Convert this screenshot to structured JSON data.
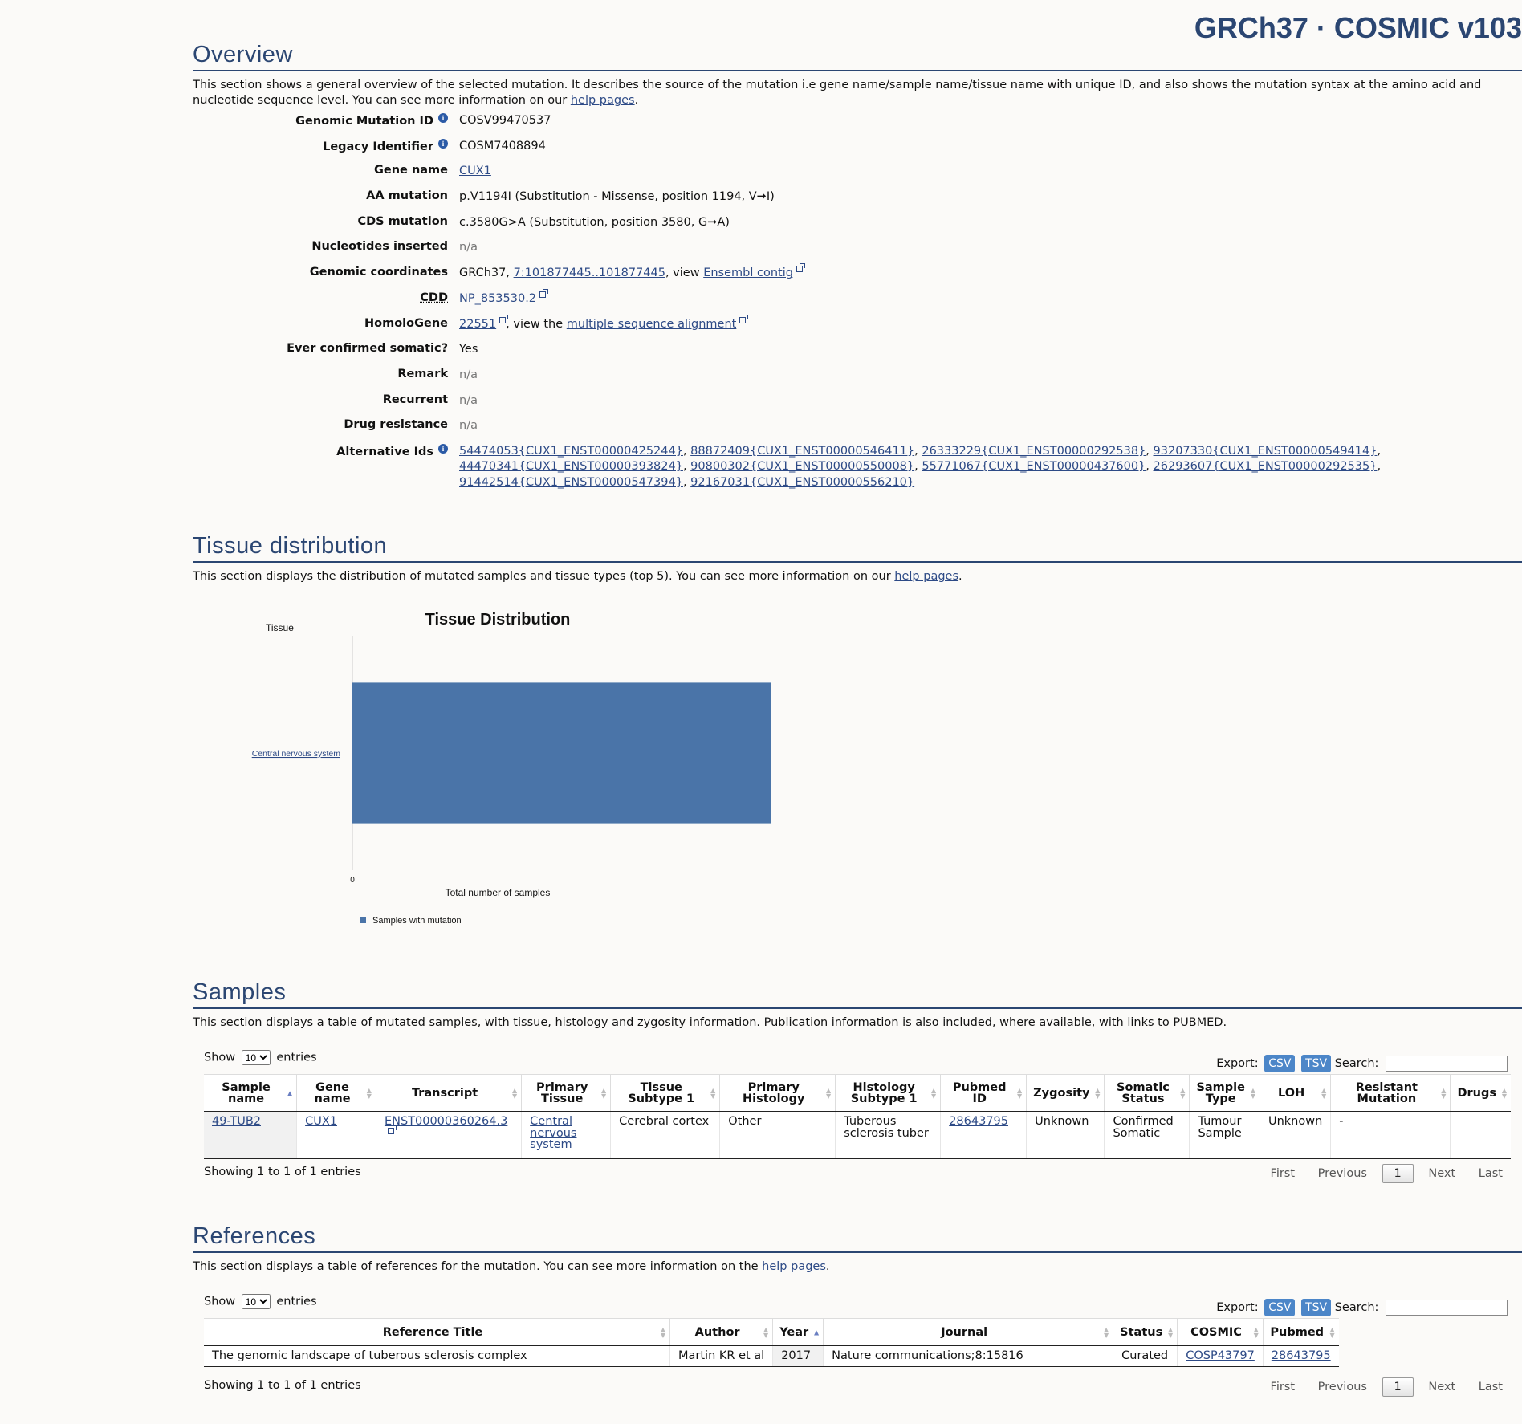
{
  "header": {
    "release": "GRCh37 · COSMIC v103"
  },
  "overview": {
    "title": "Overview",
    "intro_prefix": "This section shows a general overview of the selected mutation. It describes the source of the mutation i.e gene name/sample name/tissue name with unique ID, and also shows the mutation syntax at the amino acid and nucleotide sequence level. You can see more information on our ",
    "intro_link": "help pages",
    "intro_suffix": ".",
    "fields": {
      "genomic_mutation_id": {
        "label": "Genomic Mutation ID",
        "value": "COSV99470537"
      },
      "legacy_identifier": {
        "label": "Legacy Identifier",
        "value": "COSM7408894"
      },
      "gene_name": {
        "label": "Gene name",
        "value": "CUX1"
      },
      "aa_mutation": {
        "label": "AA mutation",
        "value": "p.V1194I (Substitution - Missense, position 1194, V➞I)"
      },
      "cds_mutation": {
        "label": "CDS mutation",
        "value": "c.3580G>A (Substitution, position 3580, G➞A)"
      },
      "nucleotides_inserted": {
        "label": "Nucleotides inserted",
        "value": "n/a"
      },
      "genomic_coordinates": {
        "label": "Genomic coordinates",
        "prefix": "GRCh37, ",
        "link": "7:101877445..101877445",
        "mid": ", view ",
        "link2": "Ensembl contig"
      },
      "cdd": {
        "label": "CDD",
        "link": "NP_853530.2"
      },
      "homologene": {
        "label": "HomoloGene",
        "link": "22551",
        "mid": ", view the ",
        "link2": "multiple sequence alignment"
      },
      "ever_confirmed": {
        "label": "Ever confirmed somatic?",
        "value": "Yes"
      },
      "remark": {
        "label": "Remark",
        "value": "n/a"
      },
      "recurrent": {
        "label": "Recurrent",
        "value": "n/a"
      },
      "drug_resistance": {
        "label": "Drug resistance",
        "value": "n/a"
      },
      "alternative_ids": {
        "label": "Alternative Ids",
        "ids": [
          "54474053{CUX1_ENST00000425244}",
          "88872409{CUX1_ENST00000546411}",
          "26333229{CUX1_ENST00000292538}",
          "93207330{CUX1_ENST00000549414}",
          "44470341{CUX1_ENST00000393824}",
          "90800302{CUX1_ENST00000550008}",
          "55771067{CUX1_ENST00000437600}",
          "26293607{CUX1_ENST00000292535}",
          "91442514{CUX1_ENST00000547394}",
          "92167031{CUX1_ENST00000556210}"
        ]
      }
    }
  },
  "tissue": {
    "title": "Tissue distribution",
    "intro_prefix": "This section displays the distribution of mutated samples and tissue types (top 5). You can see more information on our ",
    "intro_link": "help pages",
    "intro_suffix": "."
  },
  "chart_data": {
    "type": "bar",
    "orientation": "horizontal",
    "title": "Tissue Distribution",
    "categories": [
      "Central nervous system"
    ],
    "series": [
      {
        "name": "Samples with mutation",
        "values": [
          1
        ],
        "color": "#4a74a8"
      }
    ],
    "xlabel": "Total number of samples",
    "ylabel": "Tissue",
    "xlim": [
      0,
      1
    ],
    "xticks": [
      "0",
      "1"
    ],
    "legend": "bottom-left",
    "grid": false
  },
  "samples": {
    "title": "Samples",
    "intro": "This section displays a table of mutated samples, with tissue, histology and zygosity information. Publication information is also included, where available, with links to PUBMED.",
    "show_label": "Show",
    "page_size": "10",
    "entries_label": "entries",
    "export_label": "Export:",
    "csv": "CSV",
    "tsv": "TSV",
    "search_label": "Search:",
    "columns": [
      "Sample name",
      "Gene name",
      "Transcript",
      "Primary Tissue",
      "Tissue Subtype 1",
      "Primary Histology",
      "Histology Subtype 1",
      "Pubmed ID",
      "Zygosity",
      "Somatic Status",
      "Sample Type",
      "LOH",
      "Resistant Mutation",
      "Drugs"
    ],
    "row": {
      "sample_name": "49-TUB2",
      "gene_name": "CUX1",
      "transcript": "ENST00000360264.3",
      "primary_tissue": "Central nervous system",
      "tissue_subtype": "Cerebral cortex",
      "primary_histology": "Other",
      "histology_subtype": "Tuberous sclerosis tuber",
      "pubmed_id": "28643795",
      "zygosity": "Unknown",
      "somatic_status": "Confirmed Somatic",
      "sample_type": "Tumour Sample",
      "loh": "Unknown",
      "resistant_mutation": "-",
      "drugs": ""
    },
    "info": "Showing 1 to 1 of 1 entries",
    "pager": {
      "first": "First",
      "previous": "Previous",
      "current": "1",
      "next": "Next",
      "last": "Last"
    }
  },
  "references": {
    "title": "References",
    "intro_prefix": "This section displays a table of references for the mutation. You can see more information on the ",
    "intro_link": "help pages",
    "intro_suffix": ".",
    "show_label": "Show",
    "page_size": "10",
    "entries_label": "entries",
    "export_label": "Export:",
    "csv": "CSV",
    "tsv": "TSV",
    "search_label": "Search:",
    "columns": [
      "Reference Title",
      "Author",
      "Year",
      "Journal",
      "Status",
      "COSMIC",
      "Pubmed"
    ],
    "row": {
      "title": "The genomic landscape of tuberous sclerosis complex",
      "author": "Martin KR et al",
      "year": "2017",
      "journal": "Nature communications;8:15816",
      "status": "Curated",
      "cosmic": "COSP43797",
      "pubmed": "28643795"
    },
    "info": "Showing 1 to 1 of 1 entries",
    "pager": {
      "first": "First",
      "previous": "Previous",
      "current": "1",
      "next": "Next",
      "last": "Last"
    }
  }
}
